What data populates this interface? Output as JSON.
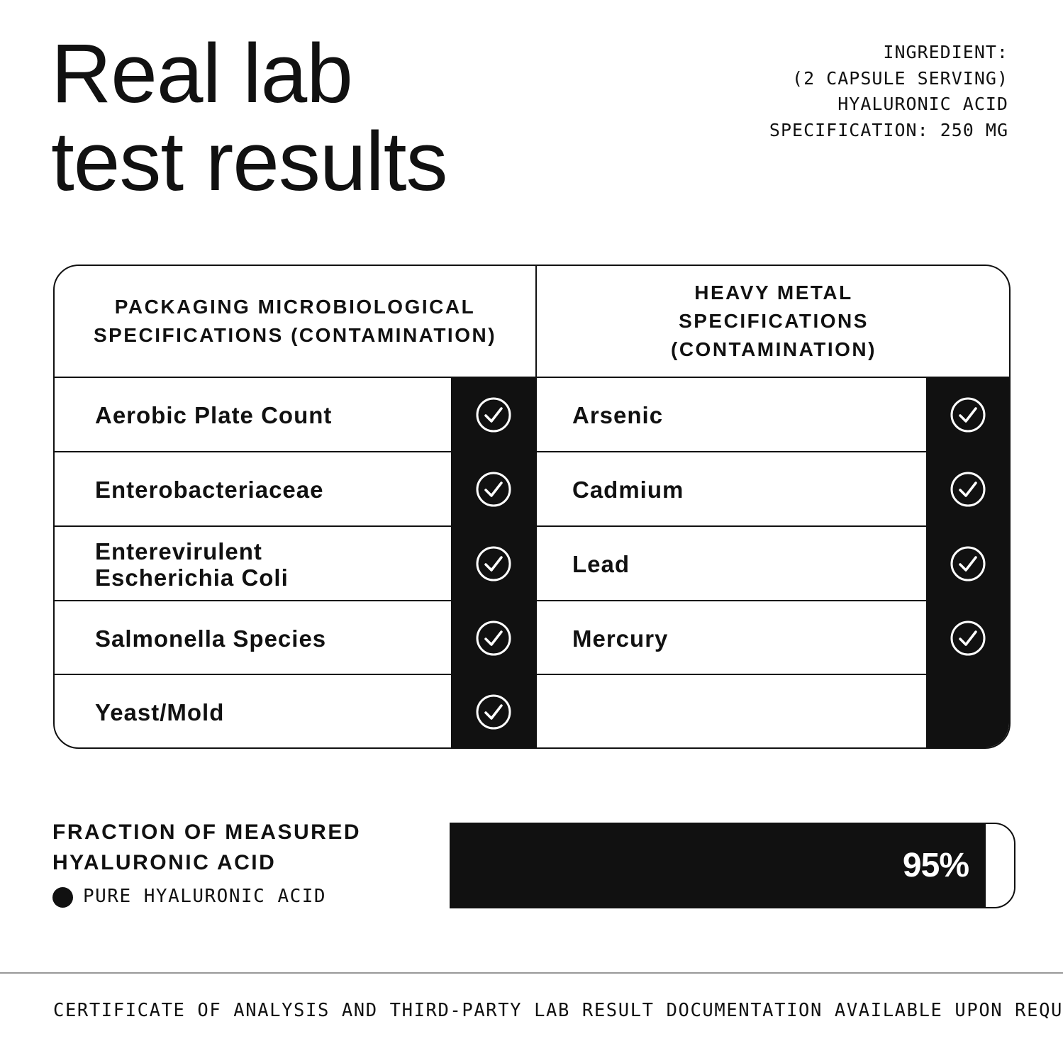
{
  "title": [
    "Real lab",
    "test results"
  ],
  "spec": {
    "ingredient_label": "INGREDIENT:",
    "serving": "(2 CAPSULE SERVING)",
    "ingredient": "HYALURONIC ACID",
    "specification": "SPECIFICATION: 250 MG"
  },
  "table": {
    "left_header": "PACKAGING MICROBIOLOGICAL SPECIFICATIONS (CONTAMINATION)",
    "right_header": "HEAVY METAL SPECIFICATIONS (CONTAMINATION)",
    "left_rows": [
      "Aerobic Plate Count",
      "Enterobacteriaceae",
      "Enterevirulent Escherichia Coli",
      "Salmonella Species",
      "Yeast/Mold"
    ],
    "right_rows": [
      "Arsenic",
      "Cadmium",
      "Lead",
      "Mercury"
    ],
    "status_icon": "check-circle-icon"
  },
  "fraction": {
    "heading": "FRACTION OF MEASURED HYALURONIC ACID",
    "legend": "PURE HYALURONIC ACID",
    "value_label": "95%",
    "value": 95,
    "color": "#111111"
  },
  "footer": "CERTIFICATE OF ANALYSIS AND THIRD-PARTY LAB RESULT DOCUMENTATION AVAILABLE UPON REQUEST"
}
